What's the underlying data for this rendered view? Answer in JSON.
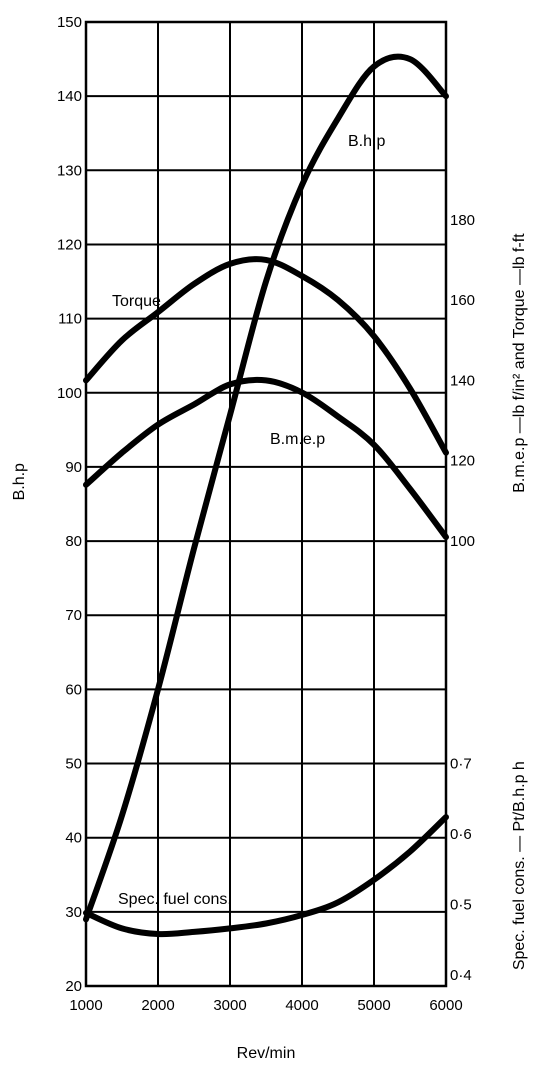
{
  "chart_data": {
    "type": "line",
    "xlabel": "Rev/min",
    "x_ticks": [
      1000,
      2000,
      3000,
      4000,
      5000,
      6000
    ],
    "xlim": [
      1000,
      6000
    ],
    "y_left": {
      "label": "B.h.p",
      "lim": [
        20,
        150
      ],
      "ticks": [
        20,
        30,
        40,
        50,
        60,
        70,
        80,
        90,
        100,
        110,
        120,
        130,
        140,
        150
      ]
    },
    "y_right_upper": {
      "label": "B.m.e.p —lb f/in² and Torque —lb f-ft",
      "lim": [
        100,
        180
      ],
      "ticks": [
        100,
        120,
        140,
        160,
        180
      ]
    },
    "y_right_lower": {
      "label": "Spec. fuel cons. — Pt/B.h.p h",
      "lim": [
        0.4,
        0.7
      ],
      "ticks": [
        "0·4",
        "0·5",
        "0·6",
        "0·7"
      ],
      "tick_values": [
        0.4,
        0.5,
        0.6,
        0.7
      ]
    },
    "grid": true,
    "series": [
      {
        "name": "B.h.p",
        "axis": "left",
        "x": [
          1000,
          1500,
          2000,
          2500,
          3000,
          3500,
          4000,
          4500,
          5000,
          5500,
          6000
        ],
        "y": [
          29,
          43,
          60,
          79,
          97,
          115,
          128,
          137,
          144,
          145,
          140
        ]
      },
      {
        "name": "Torque",
        "axis": "right_upper",
        "x": [
          1000,
          1500,
          2000,
          2500,
          3000,
          3500,
          4000,
          4500,
          5000,
          5500,
          6000
        ],
        "y": [
          140,
          150,
          157,
          164,
          169,
          170,
          166,
          160,
          151,
          138,
          122
        ]
      },
      {
        "name": "B.m.e.p",
        "axis": "right_upper",
        "x": [
          1000,
          1500,
          2000,
          2500,
          3000,
          3500,
          4000,
          4500,
          5000,
          5500,
          6000
        ],
        "y": [
          114,
          122,
          129,
          134,
          139,
          140,
          137,
          131,
          124,
          113,
          101
        ]
      },
      {
        "name": "Spec. fuel cons.",
        "axis": "right_lower",
        "x": [
          1000,
          1500,
          2000,
          2500,
          3000,
          3500,
          4000,
          4500,
          5000,
          5500,
          6000
        ],
        "y": [
          0.488,
          0.466,
          0.458,
          0.461,
          0.466,
          0.473,
          0.485,
          0.503,
          0.535,
          0.575,
          0.624
        ]
      }
    ]
  }
}
